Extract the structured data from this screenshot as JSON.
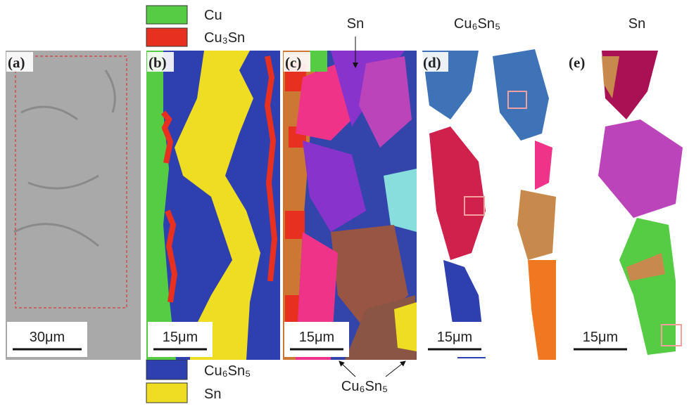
{
  "legend": [
    "Cu",
    "Cu₃Sn",
    "Cu₆Sn₅",
    "Sn"
  ],
  "panels": [
    {
      "label": "(a)",
      "scale_bar": "30μm"
    },
    {
      "label": "(b)",
      "scale_bar": "15μm"
    },
    {
      "label": "(c)",
      "scale_bar": "15μm"
    },
    {
      "label": "(d)",
      "scale_bar": "15μm"
    },
    {
      "label": "(e)",
      "scale_bar": "15μm"
    }
  ],
  "headers": {
    "c": "Sn",
    "d": "Cu₆Sn₅",
    "e": "Sn"
  },
  "annotation": "Cu₆Sn₅"
}
